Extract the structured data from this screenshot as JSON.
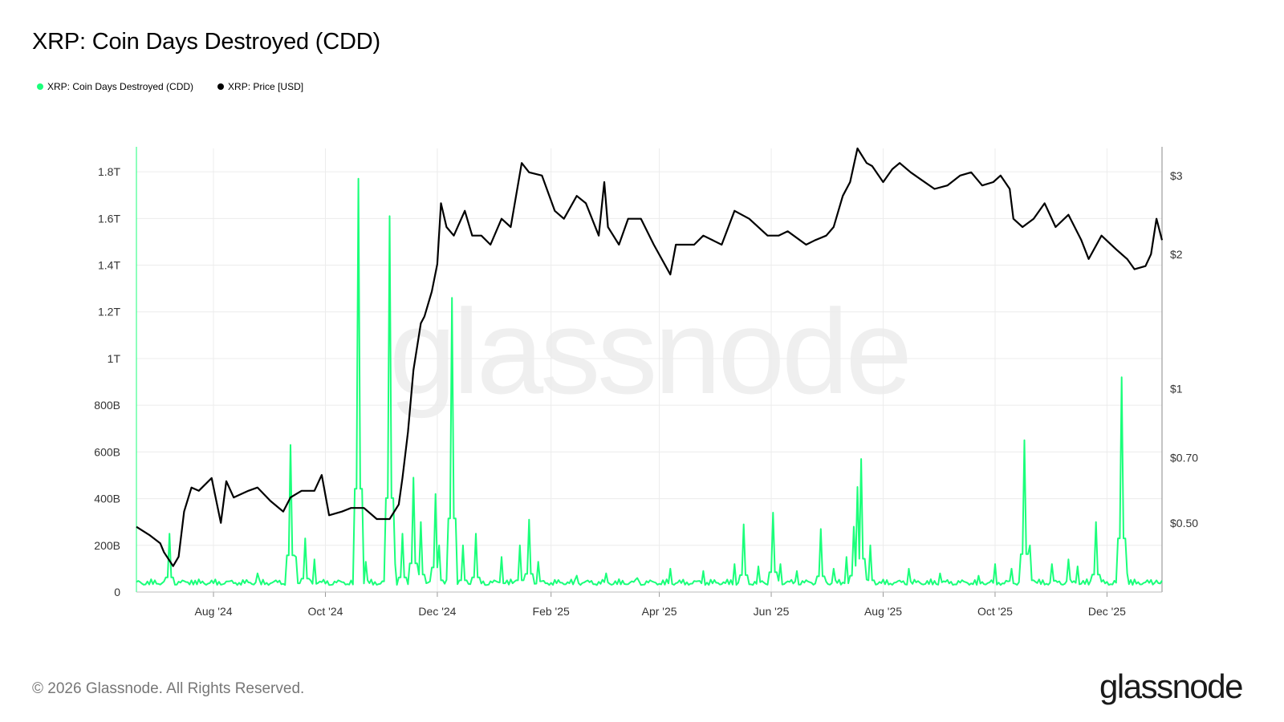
{
  "title": "XRP: Coin Days Destroyed (CDD)",
  "footer": "© 2026 Glassnode. All Rights Reserved.",
  "brand": "glassnode",
  "watermark": "glassnode",
  "colors": {
    "cdd": "#1aff7a",
    "price": "#000000",
    "grid": "#ececec",
    "watermark": "#efefef"
  },
  "legend": [
    {
      "label": "XRP: Coin Days Destroyed (CDD)",
      "color": "#1aff7a"
    },
    {
      "label": "XRP: Price [USD]",
      "color": "#000000"
    }
  ],
  "chart_data": {
    "type": "line",
    "grid": true,
    "legend_position": "top-left",
    "x_start": "2024-06-20",
    "x_end": "2025-12-31",
    "x_ticks": [
      "Aug '24",
      "Oct '24",
      "Dec '24",
      "Feb '25",
      "Apr '25",
      "Jun '25",
      "Aug '25",
      "Oct '25",
      "Dec '25"
    ],
    "x_tick_dates": [
      "2024-08-01",
      "2024-10-01",
      "2024-12-01",
      "2025-02-01",
      "2025-04-01",
      "2025-06-01",
      "2025-08-01",
      "2025-10-01",
      "2025-12-01"
    ],
    "y_left": {
      "ylim": [
        0,
        1.9
      ],
      "unit": "T",
      "ticks": [
        0,
        0.2,
        0.4,
        0.6,
        0.8,
        1.0,
        1.2,
        1.4,
        1.6,
        1.8
      ],
      "tick_labels": [
        "0",
        "200B",
        "400B",
        "600B",
        "800B",
        "1T",
        "1.2T",
        "1.4T",
        "1.6T",
        "1.8T"
      ]
    },
    "y_right": {
      "scale": "log",
      "ylim": [
        0.35,
        3.45
      ],
      "ticks": [
        0.5,
        0.7,
        1,
        2,
        3
      ],
      "tick_labels": [
        "$0.50",
        "$0.70",
        "$1",
        "$2",
        "$3"
      ]
    },
    "series": [
      {
        "name": "XRP: Coin Days Destroyed (CDD)",
        "axis": "left",
        "baseline": 0.03,
        "points": [
          [
            "2024-07-08",
            0.25
          ],
          [
            "2024-07-20",
            0.05
          ],
          [
            "2024-08-15",
            0.04
          ],
          [
            "2024-08-25",
            0.08
          ],
          [
            "2024-09-12",
            0.63
          ],
          [
            "2024-09-15",
            0.15
          ],
          [
            "2024-09-20",
            0.23
          ],
          [
            "2024-09-25",
            0.14
          ],
          [
            "2024-10-19",
            1.77
          ],
          [
            "2024-10-23",
            0.13
          ],
          [
            "2024-11-05",
            1.61
          ],
          [
            "2024-11-08",
            0.12
          ],
          [
            "2024-11-12",
            0.25
          ],
          [
            "2024-11-18",
            0.49
          ],
          [
            "2024-11-22",
            0.3
          ],
          [
            "2024-11-30",
            0.42
          ],
          [
            "2024-12-02",
            0.2
          ],
          [
            "2024-12-09",
            1.26
          ],
          [
            "2024-12-15",
            0.2
          ],
          [
            "2024-12-22",
            0.25
          ],
          [
            "2025-01-05",
            0.15
          ],
          [
            "2025-01-15",
            0.2
          ],
          [
            "2025-01-20",
            0.31
          ],
          [
            "2025-01-25",
            0.13
          ],
          [
            "2025-02-15",
            0.07
          ],
          [
            "2025-03-03",
            0.08
          ],
          [
            "2025-03-20",
            0.06
          ],
          [
            "2025-04-07",
            0.1
          ],
          [
            "2025-04-25",
            0.09
          ],
          [
            "2025-05-12",
            0.12
          ],
          [
            "2025-05-17",
            0.29
          ],
          [
            "2025-05-25",
            0.11
          ],
          [
            "2025-06-02",
            0.34
          ],
          [
            "2025-06-06",
            0.12
          ],
          [
            "2025-06-15",
            0.09
          ],
          [
            "2025-06-28",
            0.27
          ],
          [
            "2025-07-05",
            0.1
          ],
          [
            "2025-07-12",
            0.15
          ],
          [
            "2025-07-16",
            0.28
          ],
          [
            "2025-07-18",
            0.45
          ],
          [
            "2025-07-20",
            0.57
          ],
          [
            "2025-07-25",
            0.2
          ],
          [
            "2025-08-15",
            0.1
          ],
          [
            "2025-09-01",
            0.08
          ],
          [
            "2025-09-22",
            0.07
          ],
          [
            "2025-10-01",
            0.12
          ],
          [
            "2025-10-10",
            0.1
          ],
          [
            "2025-10-17",
            0.65
          ],
          [
            "2025-10-20",
            0.2
          ],
          [
            "2025-11-01",
            0.12
          ],
          [
            "2025-11-10",
            0.14
          ],
          [
            "2025-11-15",
            0.11
          ],
          [
            "2025-11-25",
            0.3
          ],
          [
            "2025-12-09",
            0.92
          ],
          [
            "2025-12-12",
            0.08
          ],
          [
            "2025-12-28",
            0.05
          ]
        ]
      },
      {
        "name": "XRP: Price [USD]",
        "axis": "right",
        "points": [
          [
            "2024-06-20",
            0.49
          ],
          [
            "2024-06-27",
            0.47
          ],
          [
            "2024-07-03",
            0.45
          ],
          [
            "2024-07-05",
            0.43
          ],
          [
            "2024-07-10",
            0.4
          ],
          [
            "2024-07-13",
            0.42
          ],
          [
            "2024-07-16",
            0.53
          ],
          [
            "2024-07-20",
            0.6
          ],
          [
            "2024-07-24",
            0.59
          ],
          [
            "2024-07-31",
            0.63
          ],
          [
            "2024-08-05",
            0.5
          ],
          [
            "2024-08-08",
            0.62
          ],
          [
            "2024-08-12",
            0.57
          ],
          [
            "2024-08-20",
            0.59
          ],
          [
            "2024-08-25",
            0.6
          ],
          [
            "2024-09-01",
            0.56
          ],
          [
            "2024-09-08",
            0.53
          ],
          [
            "2024-09-12",
            0.57
          ],
          [
            "2024-09-18",
            0.59
          ],
          [
            "2024-09-25",
            0.59
          ],
          [
            "2024-09-29",
            0.64
          ],
          [
            "2024-10-03",
            0.52
          ],
          [
            "2024-10-10",
            0.53
          ],
          [
            "2024-10-15",
            0.54
          ],
          [
            "2024-10-22",
            0.54
          ],
          [
            "2024-10-29",
            0.51
          ],
          [
            "2024-11-05",
            0.51
          ],
          [
            "2024-11-10",
            0.55
          ],
          [
            "2024-11-12",
            0.63
          ],
          [
            "2024-11-15",
            0.8
          ],
          [
            "2024-11-18",
            1.1
          ],
          [
            "2024-11-22",
            1.4
          ],
          [
            "2024-11-24",
            1.45
          ],
          [
            "2024-11-28",
            1.65
          ],
          [
            "2024-12-01",
            1.9
          ],
          [
            "2024-12-03",
            2.6
          ],
          [
            "2024-12-06",
            2.3
          ],
          [
            "2024-12-10",
            2.2
          ],
          [
            "2024-12-16",
            2.5
          ],
          [
            "2024-12-20",
            2.2
          ],
          [
            "2024-12-25",
            2.2
          ],
          [
            "2024-12-30",
            2.1
          ],
          [
            "2025-01-05",
            2.4
          ],
          [
            "2025-01-10",
            2.3
          ],
          [
            "2025-01-16",
            3.2
          ],
          [
            "2025-01-20",
            3.05
          ],
          [
            "2025-01-27",
            3.0
          ],
          [
            "2025-02-03",
            2.5
          ],
          [
            "2025-02-08",
            2.4
          ],
          [
            "2025-02-15",
            2.7
          ],
          [
            "2025-02-20",
            2.6
          ],
          [
            "2025-02-27",
            2.2
          ],
          [
            "2025-03-02",
            2.9
          ],
          [
            "2025-03-04",
            2.3
          ],
          [
            "2025-03-10",
            2.1
          ],
          [
            "2025-03-15",
            2.4
          ],
          [
            "2025-03-22",
            2.4
          ],
          [
            "2025-03-29",
            2.1
          ],
          [
            "2025-04-07",
            1.8
          ],
          [
            "2025-04-10",
            2.1
          ],
          [
            "2025-04-20",
            2.1
          ],
          [
            "2025-04-25",
            2.2
          ],
          [
            "2025-05-05",
            2.1
          ],
          [
            "2025-05-12",
            2.5
          ],
          [
            "2025-05-20",
            2.4
          ],
          [
            "2025-05-30",
            2.2
          ],
          [
            "2025-06-05",
            2.2
          ],
          [
            "2025-06-10",
            2.25
          ],
          [
            "2025-06-20",
            2.1
          ],
          [
            "2025-06-25",
            2.15
          ],
          [
            "2025-07-01",
            2.2
          ],
          [
            "2025-07-05",
            2.3
          ],
          [
            "2025-07-10",
            2.7
          ],
          [
            "2025-07-14",
            2.9
          ],
          [
            "2025-07-18",
            3.45
          ],
          [
            "2025-07-23",
            3.2
          ],
          [
            "2025-07-26",
            3.15
          ],
          [
            "2025-08-01",
            2.9
          ],
          [
            "2025-08-06",
            3.1
          ],
          [
            "2025-08-10",
            3.2
          ],
          [
            "2025-08-16",
            3.05
          ],
          [
            "2025-08-21",
            2.95
          ],
          [
            "2025-08-29",
            2.8
          ],
          [
            "2025-09-05",
            2.85
          ],
          [
            "2025-09-12",
            3.0
          ],
          [
            "2025-09-18",
            3.05
          ],
          [
            "2025-09-24",
            2.85
          ],
          [
            "2025-09-30",
            2.9
          ],
          [
            "2025-10-04",
            3.0
          ],
          [
            "2025-10-09",
            2.8
          ],
          [
            "2025-10-11",
            2.4
          ],
          [
            "2025-10-16",
            2.3
          ],
          [
            "2025-10-22",
            2.4
          ],
          [
            "2025-10-28",
            2.6
          ],
          [
            "2025-11-03",
            2.3
          ],
          [
            "2025-11-10",
            2.45
          ],
          [
            "2025-11-17",
            2.15
          ],
          [
            "2025-11-21",
            1.95
          ],
          [
            "2025-11-28",
            2.2
          ],
          [
            "2025-12-06",
            2.05
          ],
          [
            "2025-12-12",
            1.95
          ],
          [
            "2025-12-16",
            1.85
          ],
          [
            "2025-12-22",
            1.88
          ],
          [
            "2025-12-25",
            2.0
          ],
          [
            "2025-12-28",
            2.4
          ],
          [
            "2025-12-31",
            2.15
          ]
        ]
      }
    ]
  }
}
